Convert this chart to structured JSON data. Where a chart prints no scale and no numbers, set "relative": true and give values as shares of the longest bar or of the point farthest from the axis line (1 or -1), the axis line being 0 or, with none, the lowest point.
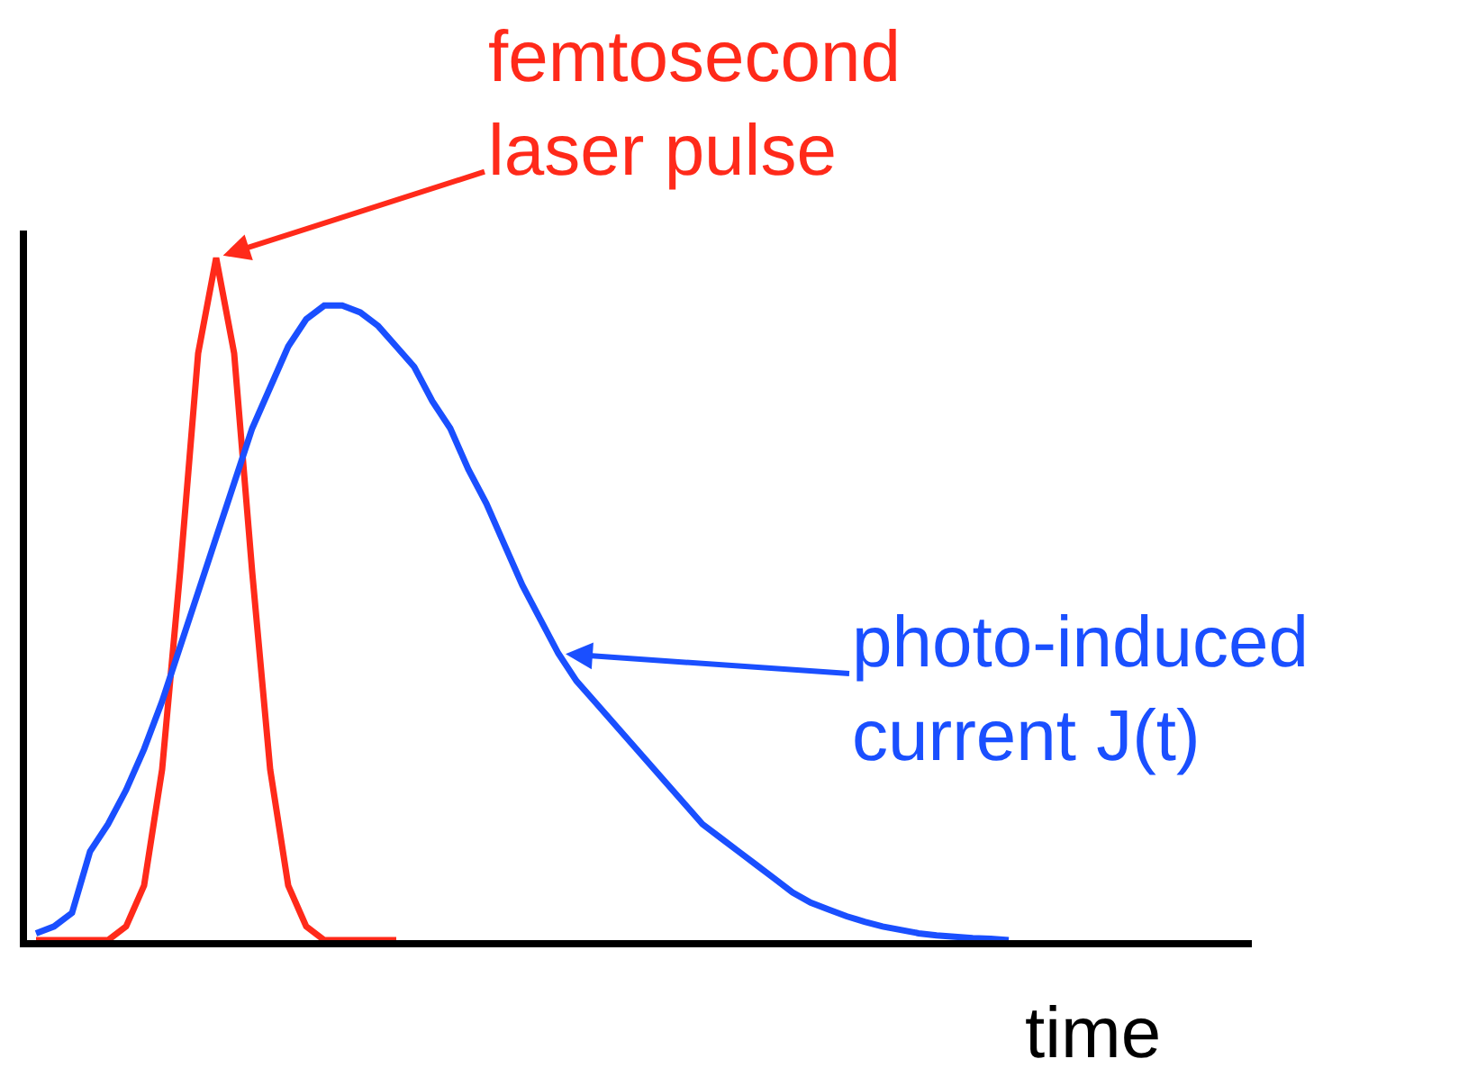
{
  "chart_data": {
    "type": "line",
    "relative": true,
    "xlabel": "time",
    "grid": false,
    "marker": "none",
    "line_style": "solid",
    "categories": [
      null,
      null,
      null,
      null,
      null,
      null,
      null,
      null,
      null,
      null,
      null,
      null,
      null,
      null,
      null,
      null,
      null,
      null,
      null,
      null,
      null,
      null,
      null,
      null,
      null,
      null,
      null,
      null,
      null,
      null,
      null,
      null,
      null,
      null,
      null,
      null,
      null,
      null,
      null,
      null,
      null,
      null,
      null,
      null,
      null,
      null,
      null,
      null,
      null,
      null,
      null,
      null,
      null,
      null,
      null,
      null,
      null,
      null,
      null,
      null,
      null,
      null,
      null,
      null,
      null,
      null,
      null,
      null
    ],
    "series": [
      {
        "color": "#ff2a1a",
        "values": [
          0,
          0,
          0,
          0,
          0,
          0.02,
          0.08,
          0.25,
          0.54,
          0.86,
          1,
          0.86,
          0.54,
          0.25,
          0.08,
          0.02,
          0,
          0,
          0,
          0,
          0,
          null,
          null,
          null,
          null,
          null,
          null,
          null,
          null,
          null,
          null,
          null,
          null,
          null,
          null,
          null,
          null,
          null,
          null,
          null,
          null,
          null,
          null,
          null,
          null,
          null,
          null,
          null,
          null,
          null,
          null,
          null,
          null,
          null,
          null,
          null,
          null,
          null,
          null,
          null,
          null,
          null,
          null,
          null,
          null,
          null,
          null,
          null
        ]
      },
      {
        "color": "#1a4fff",
        "values": [
          0.01,
          0.02,
          0.04,
          0.13,
          0.17,
          0.22,
          0.28,
          0.35,
          0.43,
          0.51,
          0.59,
          0.67,
          0.75,
          0.81,
          0.87,
          0.91,
          0.93,
          0.93,
          0.92,
          0.9,
          0.87,
          0.84,
          0.79,
          0.75,
          0.69,
          0.64,
          0.58,
          0.52,
          0.47,
          0.42,
          0.38,
          0.35,
          0.32,
          0.29,
          0.26,
          0.23,
          0.2,
          0.17,
          0.15,
          0.13,
          0.11,
          0.09,
          0.07,
          0.055,
          0.045,
          0.035,
          0.027,
          0.02,
          0.015,
          0.01,
          0.007,
          0.005,
          0.003,
          0.002,
          0,
          null,
          null,
          null,
          null,
          null,
          null,
          null,
          null,
          null,
          null,
          null,
          null,
          null
        ]
      }
    ],
    "annotations": [
      "femtosecond\nlaser pulse",
      "photo-induced\ncurrent J(t)"
    ]
  }
}
